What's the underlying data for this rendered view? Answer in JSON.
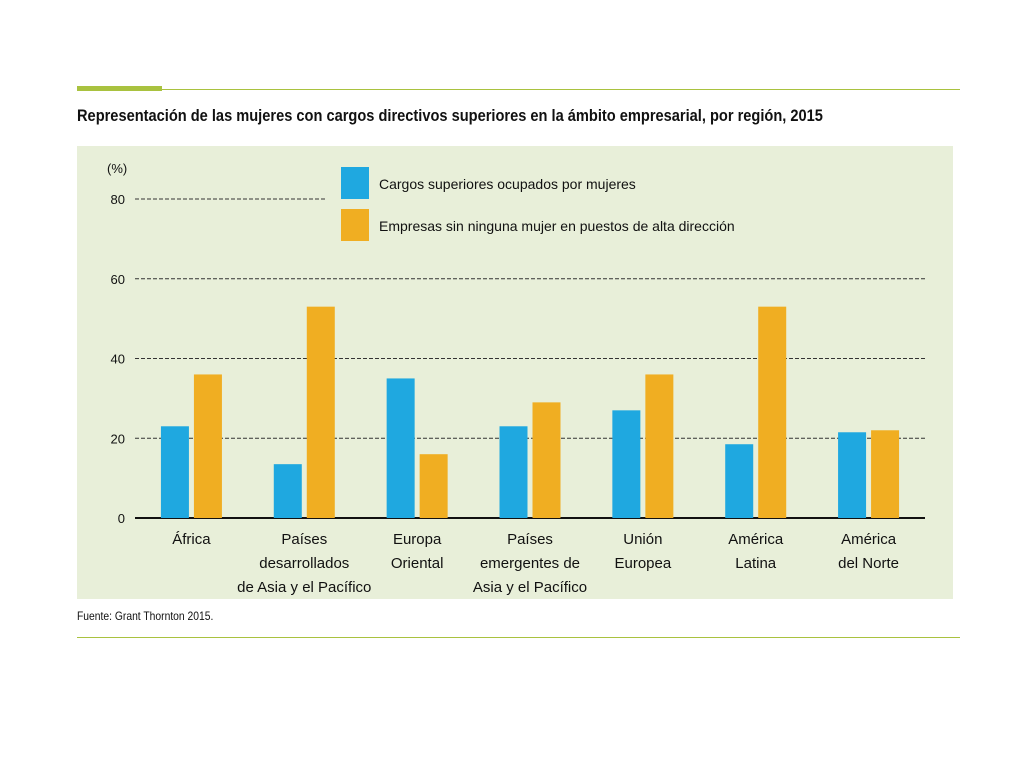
{
  "title": "Representación de las mujeres con cargos directivos superiores en la ámbito empresarial, por región, 2015",
  "source": "Fuente: Grant Thornton 2015.",
  "colors": {
    "accent": "#a9c23f",
    "panel": "#e8efd9",
    "series_blue": "#1fa8e0",
    "series_orange": "#f0ae22",
    "axis": "#111111",
    "grid": "#333333"
  },
  "chart_data": {
    "type": "bar",
    "ylabel": "(%)",
    "ylim": [
      0,
      80
    ],
    "yticks": [
      0,
      20,
      40,
      60,
      80
    ],
    "grid": true,
    "legend_position": "top",
    "categories": [
      [
        "África"
      ],
      [
        "Países",
        "desarrollados",
        "de Asia y el Pacífico"
      ],
      [
        "Europa",
        "Oriental"
      ],
      [
        "Países",
        "emergentes de",
        "Asia y el Pacífico"
      ],
      [
        "Unión",
        "Europea"
      ],
      [
        "América",
        "Latina"
      ],
      [
        "América",
        "del Norte"
      ]
    ],
    "series": [
      {
        "name": "Cargos superiores ocupados por mujeres",
        "color": "#1fa8e0",
        "values": [
          23,
          13.5,
          35,
          23,
          27,
          18.5,
          21.5
        ]
      },
      {
        "name": "Empresas sin ninguna mujer en puestos de alta dirección",
        "color": "#f0ae22",
        "values": [
          36,
          53,
          16,
          29,
          36,
          53,
          22
        ]
      }
    ]
  }
}
